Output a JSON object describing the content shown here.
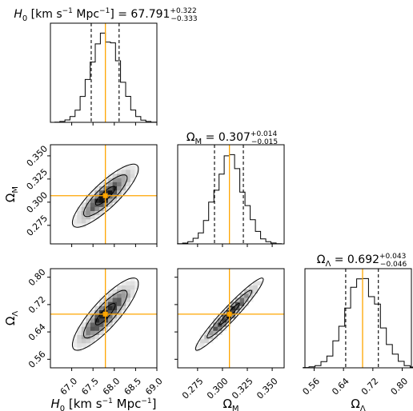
{
  "chart_data": {
    "type": "corner",
    "parameters": [
      {
        "id": "H0",
        "symbol": "H",
        "symbol_sub": "0",
        "unit_text": "[km s",
        "unit_exp": "−1",
        "unit_text2": " Mpc",
        "unit_exp2": "−1",
        "unit_close": "]",
        "median": 67.791,
        "err_plus": "+0.322",
        "err_minus": "−0.333",
        "median_text": "67.791",
        "lower": 67.458,
        "upper": 68.113,
        "range": [
          66.5,
          69.0
        ],
        "ticks": [
          67.0,
          67.5,
          68.0,
          68.5,
          69.0
        ],
        "tick_labels": [
          "67.0",
          "67.5",
          "68.0",
          "68.5",
          "69.0"
        ],
        "hist_sigma": 0.33
      },
      {
        "id": "OmegaM",
        "symbol": "Ω",
        "symbol_sub": "M",
        "median": 0.307,
        "err_plus": "+0.014",
        "err_minus": "−0.015",
        "median_text": "0.307",
        "lower": 0.292,
        "upper": 0.321,
        "range": [
          0.255,
          0.362
        ],
        "ticks": [
          0.275,
          0.3,
          0.325,
          0.35
        ],
        "tick_labels": [
          "0.275",
          "0.300",
          "0.325",
          "0.350"
        ],
        "hist_sigma": 0.0145
      },
      {
        "id": "OmegaL",
        "symbol": "Ω",
        "symbol_sub": "Λ",
        "median": 0.692,
        "err_plus": "+0.043",
        "err_minus": "−0.046",
        "median_text": "0.692",
        "lower": 0.646,
        "upper": 0.735,
        "range": [
          0.535,
          0.825
        ],
        "ticks": [
          0.56,
          0.64,
          0.72,
          0.8
        ],
        "tick_labels": [
          "0.56",
          "0.64",
          "0.72",
          "0.80"
        ],
        "hist_sigma": 0.045
      }
    ],
    "title_equals": " = ",
    "correlations": {
      "1,0": 0.85,
      "2,0": 0.85,
      "2,1": 0.96
    },
    "contour_levels_sigma": [
      1,
      2,
      3
    ],
    "colors": {
      "truth": "#ffa500",
      "histogram": "#000000",
      "contour": "#000000",
      "background": "#ffffff"
    }
  }
}
